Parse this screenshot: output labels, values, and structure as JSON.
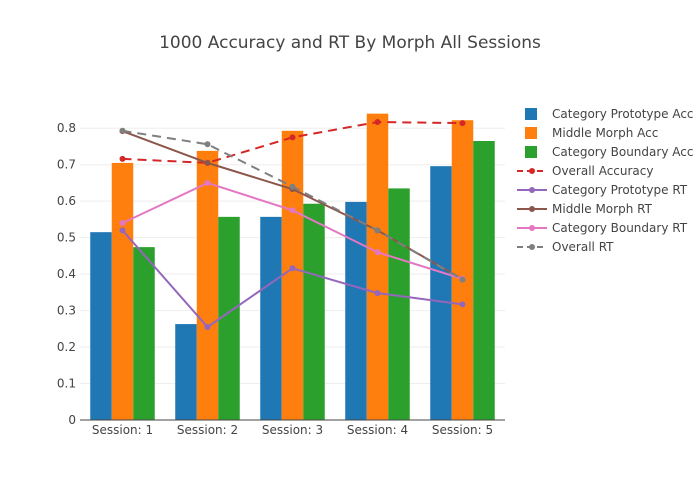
{
  "chart_data": {
    "type": "bar",
    "title": "1000 Accuracy and RT By Morph All Sessions",
    "xlabel": "",
    "ylabel": "",
    "categories": [
      "Session: 1",
      "Session: 2",
      "Session: 3",
      "Session: 4",
      "Session: 5"
    ],
    "ylim": [
      0,
      0.85
    ],
    "yticks": [
      0,
      0.1,
      0.2,
      0.3,
      0.4,
      0.5,
      0.6,
      0.7,
      0.8
    ],
    "ytick_labels": [
      "0",
      "0.1",
      "0.2",
      "0.3",
      "0.4",
      "0.5",
      "0.6",
      "0.7",
      "0.8"
    ],
    "grid": true,
    "legend_position": "right",
    "bar_series": [
      {
        "name": "Category Prototype Acc",
        "color": "#1f77b4",
        "values": [
          0.515,
          0.263,
          0.557,
          0.598,
          0.696
        ]
      },
      {
        "name": "Middle Morph Acc",
        "color": "#ff7f0e",
        "values": [
          0.705,
          0.738,
          0.793,
          0.84,
          0.822
        ]
      },
      {
        "name": "Category Boundary Acc",
        "color": "#2ca02c",
        "values": [
          0.474,
          0.557,
          0.593,
          0.635,
          0.765
        ]
      }
    ],
    "line_series": [
      {
        "name": "Overall Accuracy",
        "color": "#d62728",
        "dash": "dash",
        "values": [
          0.716,
          0.705,
          0.775,
          0.817,
          0.814
        ]
      },
      {
        "name": "Category Prototype RT",
        "color": "#9467bd",
        "dash": "solid",
        "values": [
          0.52,
          0.255,
          0.416,
          0.348,
          0.317
        ]
      },
      {
        "name": "Middle Morph RT",
        "color": "#8c564b",
        "dash": "solid",
        "values": [
          0.792,
          0.705,
          0.633,
          0.52,
          0.386
        ]
      },
      {
        "name": "Category Boundary RT",
        "color": "#e377c2",
        "dash": "solid",
        "values": [
          0.54,
          0.65,
          0.575,
          0.46,
          0.387
        ]
      },
      {
        "name": "Overall RT",
        "color": "#7f7f7f",
        "dash": "dash",
        "values": [
          0.793,
          0.756,
          0.64,
          0.52,
          0.385
        ]
      }
    ]
  }
}
